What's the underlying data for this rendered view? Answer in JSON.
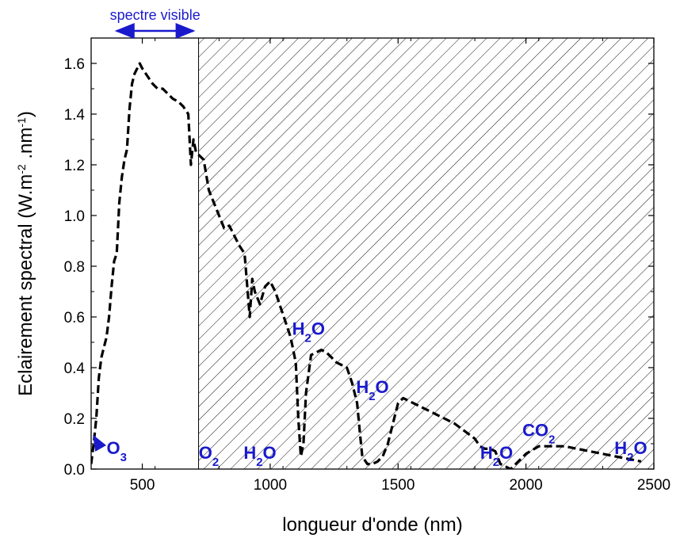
{
  "chart_data": {
    "type": "line",
    "title": "",
    "xlabel": "longueur d'onde (nm)",
    "ylabel_parts": {
      "main": "Eclairement spectral (W.m",
      "sup1": "-2",
      "mid": " .nm",
      "sup2": "-1",
      "end": ")"
    },
    "xlim": [
      300,
      2500
    ],
    "ylim": [
      0,
      1.7
    ],
    "xticks": [
      500,
      1000,
      1500,
      2000,
      2500
    ],
    "yticks": [
      0.0,
      0.2,
      0.4,
      0.6,
      0.8,
      1.0,
      1.2,
      1.4,
      1.6
    ],
    "ytick_labels": [
      "0.0",
      "0.2",
      "0.4",
      "0.6",
      "0.8",
      "1.0",
      "1.2",
      "1.4",
      "1.6"
    ],
    "xtick_labels": [
      "500",
      "1000",
      "1500",
      "2000",
      "2500"
    ],
    "line_style": "dashed",
    "line_color": "#000000",
    "hatch_region_start": 720,
    "visible_range": {
      "label": "spectre visible",
      "from": 400,
      "to": 700
    },
    "series": [
      {
        "x": [
          300,
          310,
          320,
          330,
          340,
          350,
          360,
          370,
          380,
          390,
          400,
          410,
          420,
          430,
          440,
          450,
          460,
          470,
          480,
          490,
          500,
          520,
          540,
          560,
          580,
          600,
          620,
          640,
          660,
          680,
          690,
          700,
          710,
          720,
          740,
          760,
          780,
          800,
          820,
          840,
          860,
          880,
          900,
          920,
          930,
          940,
          960,
          980,
          1000,
          1020,
          1040,
          1060,
          1080,
          1100,
          1110,
          1120,
          1130,
          1140,
          1160,
          1180,
          1200,
          1220,
          1240,
          1260,
          1280,
          1300,
          1320,
          1340,
          1350,
          1360,
          1380,
          1400,
          1420,
          1440,
          1460,
          1480,
          1500,
          1520,
          1560,
          1600,
          1640,
          1680,
          1720,
          1760,
          1800,
          1820,
          1840,
          1860,
          1880,
          1900,
          1920,
          1940,
          1960,
          1980,
          2000,
          2050,
          2100,
          2150,
          2200,
          2250,
          2300,
          2350,
          2400,
          2450
        ],
        "y": [
          0.02,
          0.1,
          0.2,
          0.36,
          0.44,
          0.48,
          0.52,
          0.6,
          0.72,
          0.82,
          0.85,
          1.05,
          1.15,
          1.22,
          1.26,
          1.42,
          1.52,
          1.56,
          1.58,
          1.6,
          1.58,
          1.55,
          1.52,
          1.5,
          1.5,
          1.48,
          1.46,
          1.45,
          1.43,
          1.4,
          1.2,
          1.3,
          1.25,
          1.24,
          1.22,
          1.1,
          1.05,
          1.0,
          0.95,
          0.96,
          0.92,
          0.88,
          0.85,
          0.6,
          0.75,
          0.7,
          0.65,
          0.72,
          0.74,
          0.7,
          0.64,
          0.58,
          0.52,
          0.42,
          0.2,
          0.05,
          0.1,
          0.3,
          0.45,
          0.46,
          0.47,
          0.46,
          0.44,
          0.42,
          0.41,
          0.4,
          0.34,
          0.26,
          0.15,
          0.05,
          0.02,
          0.02,
          0.03,
          0.05,
          0.1,
          0.18,
          0.26,
          0.28,
          0.26,
          0.24,
          0.22,
          0.2,
          0.18,
          0.15,
          0.12,
          0.09,
          0.08,
          0.08,
          0.07,
          0.02,
          0.01,
          0.0,
          0.02,
          0.04,
          0.06,
          0.09,
          0.09,
          0.09,
          0.08,
          0.07,
          0.06,
          0.05,
          0.04,
          0.03
        ]
      }
    ],
    "annotations": [
      {
        "main": "O",
        "sub": "3",
        "x": 400,
        "y": 0.06,
        "arrow_to": [
          310,
          0.13
        ]
      },
      {
        "main": "O",
        "sub": "2",
        "x": 760,
        "y": 0.04
      },
      {
        "main": "H",
        "sub": "2",
        "main2": "O",
        "x": 960,
        "y": 0.04
      },
      {
        "main": "H",
        "sub": "2",
        "main2": "O",
        "x": 1150,
        "y": 0.53
      },
      {
        "main": "H",
        "sub": "2",
        "main2": "O",
        "x": 1400,
        "y": 0.3
      },
      {
        "main": "H",
        "sub": "2",
        "main2": "O",
        "x": 1885,
        "y": 0.04
      },
      {
        "main": "CO",
        "sub": "2",
        "x": 2050,
        "y": 0.13
      },
      {
        "main": "H",
        "sub": "2",
        "main2": "O",
        "x": 2410,
        "y": 0.06
      }
    ]
  }
}
